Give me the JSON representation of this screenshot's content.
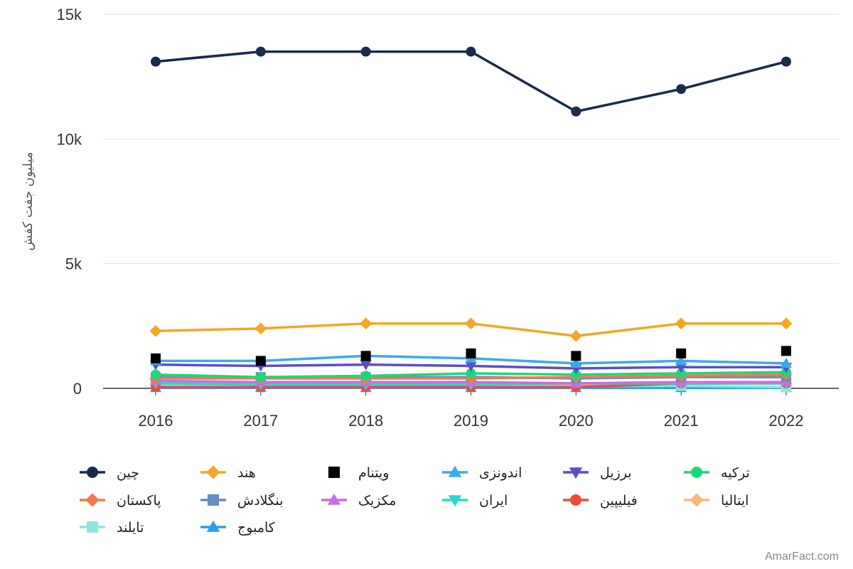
{
  "chart_data": {
    "type": "line",
    "xlabel": "",
    "ylabel": "میلیون جفت کفش",
    "x": [
      2016,
      2017,
      2018,
      2019,
      2020,
      2021,
      2022
    ],
    "x_ticks": [
      "2016",
      "2017",
      "2018",
      "2019",
      "2020",
      "2021",
      "2022"
    ],
    "ylim": [
      0,
      15000
    ],
    "y_ticks": [
      {
        "value": 0,
        "label": "0"
      },
      {
        "value": 5000,
        "label": "5k"
      },
      {
        "value": 10000,
        "label": "10k"
      },
      {
        "value": 15000,
        "label": "15k"
      }
    ],
    "grid": true,
    "legend_position": "bottom",
    "series": [
      {
        "name": "چین",
        "color": "#1b2a4a",
        "marker": "circle",
        "line": true,
        "values": [
          13100,
          13500,
          13500,
          13500,
          11100,
          12000,
          13100
        ]
      },
      {
        "name": "هند",
        "color": "#f5a623",
        "marker": "diamond",
        "line": true,
        "values": [
          2300,
          2400,
          2600,
          2600,
          2100,
          2600,
          2600
        ]
      },
      {
        "name": "ویتنام",
        "color": "#000000",
        "marker": "square",
        "line": false,
        "values": [
          1200,
          1100,
          1300,
          1400,
          1300,
          1400,
          1500
        ]
      },
      {
        "name": "اندونزی",
        "color": "#3aaaf0",
        "marker": "triangle-up",
        "line": true,
        "values": [
          1100,
          1100,
          1300,
          1200,
          1000,
          1100,
          1000
        ]
      },
      {
        "name": "برزیل",
        "color": "#5b4fc4",
        "marker": "triangle-down",
        "line": true,
        "values": [
          950,
          900,
          950,
          900,
          800,
          850,
          850
        ]
      },
      {
        "name": "ترکیه",
        "color": "#1ed67a",
        "marker": "circle",
        "line": true,
        "values": [
          550,
          450,
          500,
          600,
          550,
          600,
          650
        ]
      },
      {
        "name": "پاکستان",
        "color": "#f07a4a",
        "marker": "diamond",
        "line": true,
        "values": [
          400,
          400,
          400,
          400,
          450,
          500,
          550
        ]
      },
      {
        "name": "بنگلادش",
        "color": "#6b8cc4",
        "marker": "square",
        "line": true,
        "values": [
          450,
          450,
          450,
          450,
          400,
          450,
          450
        ]
      },
      {
        "name": "مکزیک",
        "color": "#c86de8",
        "marker": "triangle-up",
        "line": true,
        "values": [
          300,
          250,
          250,
          250,
          200,
          250,
          250
        ]
      },
      {
        "name": "ایران",
        "color": "#2ad8c8",
        "marker": "triangle-down",
        "line": true,
        "values": [
          200,
          150,
          150,
          150,
          200,
          200,
          200
        ]
      },
      {
        "name": "فیلیپین",
        "color": "#ef4a3c",
        "marker": "circle",
        "line": true,
        "values": [
          50,
          50,
          50,
          50,
          50,
          200,
          200
        ]
      },
      {
        "name": "ایتالیا",
        "color": "#f5b97a",
        "marker": "diamond",
        "line": true,
        "values": [
          200,
          200,
          200,
          200,
          150,
          200,
          200
        ]
      },
      {
        "name": "تایلند",
        "color": "#8de6e0",
        "marker": "square",
        "line": true,
        "values": [
          150,
          150,
          150,
          150,
          100,
          100,
          50
        ]
      },
      {
        "name": "کامبوج",
        "color": "#2b9df0",
        "marker": "triangle-up",
        "line": true,
        "values": [
          20,
          20,
          20,
          20,
          20,
          20,
          20
        ]
      }
    ]
  },
  "watermark": "AmarFact.com"
}
